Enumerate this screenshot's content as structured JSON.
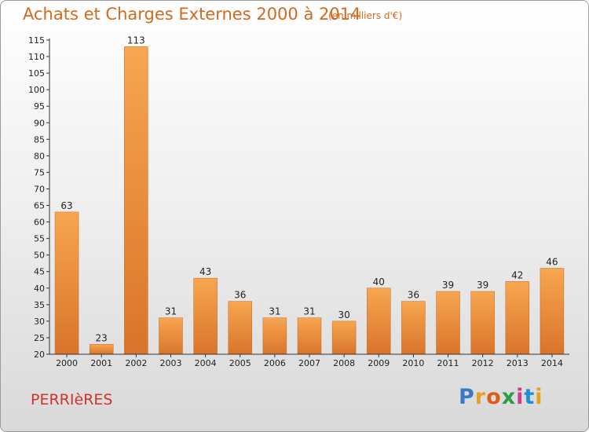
{
  "header": {
    "title": "Achats et Charges Externes 2000 à 2014",
    "subtitle": "(en milliers d'€)"
  },
  "footer": {
    "commune": "PERRIèRES",
    "logo": {
      "letters": [
        "P",
        "r",
        "o",
        "x",
        "i",
        "t",
        "i"
      ]
    }
  },
  "colors": {
    "title": "#d2691e",
    "commune": "#d0342c",
    "bar_light": "#f7a651",
    "bar_dark": "#d9742a"
  },
  "chart_data": {
    "type": "bar",
    "title": "Achats et Charges Externes 2000 à 2014",
    "subtitle": "(en milliers d'€)",
    "xlabel": "",
    "ylabel": "",
    "categories": [
      "2000",
      "2001",
      "2002",
      "2003",
      "2004",
      "2005",
      "2006",
      "2007",
      "2008",
      "2009",
      "2010",
      "2011",
      "2012",
      "2013",
      "2014"
    ],
    "values": [
      63,
      23,
      113,
      31,
      43,
      36,
      31,
      31,
      30,
      40,
      36,
      39,
      39,
      42,
      46
    ],
    "ylim": [
      20,
      115
    ],
    "yticks": [
      20,
      25,
      30,
      35,
      40,
      45,
      50,
      55,
      60,
      65,
      70,
      75,
      80,
      85,
      90,
      95,
      100,
      105,
      110,
      115
    ],
    "grid": false,
    "data_labels": true
  }
}
